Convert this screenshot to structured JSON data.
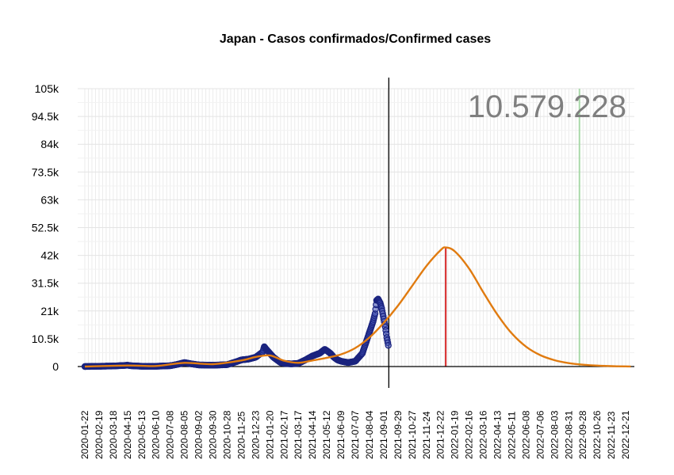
{
  "chart_data": {
    "type": "scatter",
    "title": "Japan - Casos confirmados/Confirmed cases",
    "total_label": "10.579.228",
    "ylim": [
      0,
      105000
    ],
    "y_ticks": [
      0,
      10500,
      21000,
      31500,
      42000,
      52500,
      63000,
      73500,
      84000,
      94500,
      105000
    ],
    "y_tick_labels": [
      "0",
      "10.5k",
      "21k",
      "31.5k",
      "42k",
      "52.5k",
      "63k",
      "73.5k",
      "84k",
      "94.5k",
      "105k"
    ],
    "x_tick_labels": [
      "2020-01-22",
      "2020-02-19",
      "2020-03-18",
      "2020-04-15",
      "2020-05-13",
      "2020-06-10",
      "2020-07-08",
      "2020-08-05",
      "2020-09-02",
      "2020-09-30",
      "2020-10-28",
      "2020-11-25",
      "2020-12-23",
      "2021-01-20",
      "2021-02-17",
      "2021-03-17",
      "2021-04-14",
      "2021-05-12",
      "2021-06-09",
      "2021-07-07",
      "2021-08-04",
      "2021-09-01",
      "2021-09-29",
      "2021-10-27",
      "2021-11-24",
      "2021-12-22",
      "2022-01-19",
      "2022-02-16",
      "2022-03-16",
      "2022-04-13",
      "2022-05-11",
      "2022-06-08",
      "2022-07-06",
      "2022-08-03",
      "2022-08-31",
      "2022-09-28",
      "2022-10-26",
      "2022-11-23",
      "2022-12-21"
    ],
    "xlim": [
      "2020-01-08",
      "2023-01-07"
    ],
    "grid": true,
    "vertical_lines": [
      {
        "date": "2021-09-11",
        "color": "#000000"
      },
      {
        "date": "2022-01-01",
        "color": "#d62728",
        "ymax": 45000
      },
      {
        "date": "2022-09-21",
        "color": "#a8d8a8"
      }
    ],
    "series": [
      {
        "kind": "points",
        "color": "#1a237e",
        "points": [
          [
            "2020-01-22",
            0
          ],
          [
            "2020-02-19",
            100
          ],
          [
            "2020-03-18",
            200
          ],
          [
            "2020-04-08",
            400
          ],
          [
            "2020-04-15",
            500
          ],
          [
            "2020-04-22",
            300
          ],
          [
            "2020-05-13",
            100
          ],
          [
            "2020-06-10",
            100
          ],
          [
            "2020-07-08",
            300
          ],
          [
            "2020-07-22",
            800
          ],
          [
            "2020-08-05",
            1500
          ],
          [
            "2020-08-19",
            1000
          ],
          [
            "2020-09-02",
            600
          ],
          [
            "2020-09-30",
            500
          ],
          [
            "2020-10-28",
            700
          ],
          [
            "2020-11-18",
            2000
          ],
          [
            "2020-11-25",
            2500
          ],
          [
            "2020-12-09",
            2800
          ],
          [
            "2020-12-23",
            3500
          ],
          [
            "2021-01-06",
            5500
          ],
          [
            "2021-01-09",
            7500
          ],
          [
            "2021-01-13",
            6500
          ],
          [
            "2021-01-20",
            5000
          ],
          [
            "2021-01-27",
            3500
          ],
          [
            "2021-02-10",
            1500
          ],
          [
            "2021-02-17",
            1200
          ],
          [
            "2021-03-03",
            1000
          ],
          [
            "2021-03-17",
            1200
          ],
          [
            "2021-03-31",
            2500
          ],
          [
            "2021-04-14",
            4000
          ],
          [
            "2021-04-28",
            5000
          ],
          [
            "2021-05-08",
            6500
          ],
          [
            "2021-05-12",
            6000
          ],
          [
            "2021-05-19",
            5000
          ],
          [
            "2021-05-26",
            3500
          ],
          [
            "2021-06-02",
            2500
          ],
          [
            "2021-06-09",
            2000
          ],
          [
            "2021-06-23",
            1500
          ],
          [
            "2021-07-07",
            2000
          ],
          [
            "2021-07-21",
            5000
          ],
          [
            "2021-07-28",
            9000
          ],
          [
            "2021-08-04",
            13000
          ],
          [
            "2021-08-11",
            17000
          ],
          [
            "2021-08-15",
            20000
          ],
          [
            "2021-08-18",
            25000
          ],
          [
            "2021-08-21",
            25500
          ],
          [
            "2021-08-25",
            24000
          ],
          [
            "2021-08-28",
            22000
          ],
          [
            "2021-09-01",
            18000
          ],
          [
            "2021-09-04",
            15000
          ],
          [
            "2021-09-07",
            11000
          ],
          [
            "2021-09-10",
            8000
          ]
        ]
      },
      {
        "kind": "fit_line",
        "color": "#e07b10",
        "points": [
          [
            "2020-01-22",
            0
          ],
          [
            "2020-04-15",
            400
          ],
          [
            "2020-06-10",
            200
          ],
          [
            "2020-08-05",
            1400
          ],
          [
            "2020-09-30",
            900
          ],
          [
            "2020-11-25",
            2300
          ],
          [
            "2020-12-23",
            3600
          ],
          [
            "2021-01-20",
            4200
          ],
          [
            "2021-02-17",
            2200
          ],
          [
            "2021-03-17",
            1400
          ],
          [
            "2021-04-14",
            2300
          ],
          [
            "2021-05-12",
            3300
          ],
          [
            "2021-06-09",
            4600
          ],
          [
            "2021-07-07",
            7000
          ],
          [
            "2021-08-04",
            11000
          ],
          [
            "2021-09-01",
            16500
          ],
          [
            "2021-09-29",
            23000
          ],
          [
            "2021-10-27",
            30500
          ],
          [
            "2021-11-24",
            38000
          ],
          [
            "2021-12-22",
            44000
          ],
          [
            "2022-01-01",
            45000
          ],
          [
            "2022-01-19",
            43500
          ],
          [
            "2022-02-16",
            37000
          ],
          [
            "2022-03-16",
            28000
          ],
          [
            "2022-04-13",
            19500
          ],
          [
            "2022-05-11",
            12500
          ],
          [
            "2022-06-08",
            7500
          ],
          [
            "2022-07-06",
            4300
          ],
          [
            "2022-08-03",
            2400
          ],
          [
            "2022-08-31",
            1300
          ],
          [
            "2022-09-28",
            700
          ],
          [
            "2022-10-26",
            350
          ],
          [
            "2022-11-23",
            150
          ],
          [
            "2022-12-21",
            50
          ],
          [
            "2022-12-31",
            30
          ]
        ]
      }
    ]
  }
}
